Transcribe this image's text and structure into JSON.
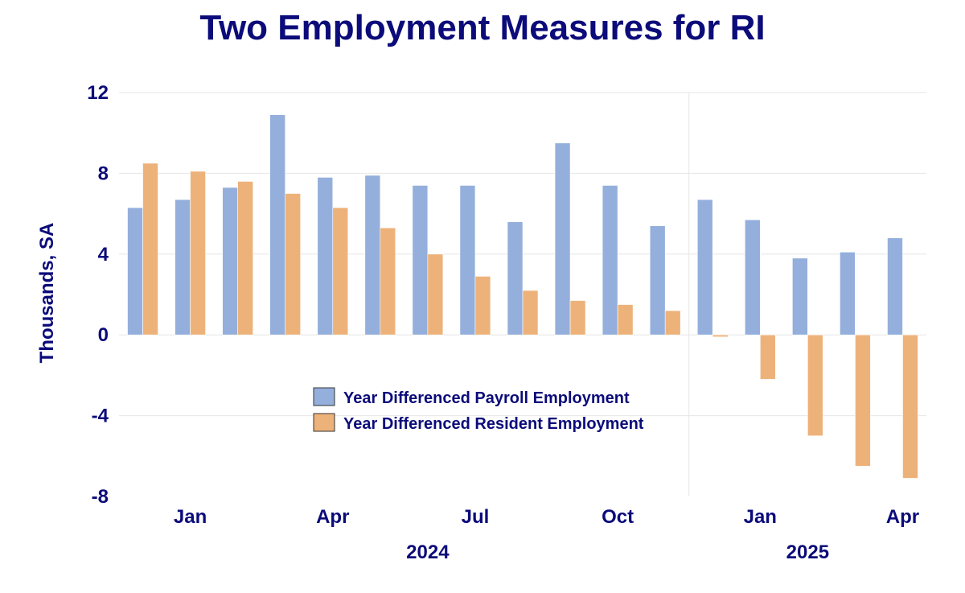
{
  "chart_data": {
    "type": "bar",
    "title": "Two Employment Measures for RI",
    "ylabel": "Thousands, SA",
    "ylim": [
      -8,
      12
    ],
    "yticks": [
      12,
      8,
      4,
      0,
      -4,
      -8
    ],
    "months": [
      "2023-12",
      "2024-01",
      "2024-02",
      "2024-03",
      "2024-04",
      "2024-05",
      "2024-06",
      "2024-07",
      "2024-08",
      "2024-09",
      "2024-10",
      "2024-11",
      "2024-12",
      "2025-01",
      "2025-02",
      "2025-03",
      "2025-04"
    ],
    "x_tick_labels": [
      {
        "month": "2024-01",
        "label": "Jan"
      },
      {
        "month": "2024-04",
        "label": "Apr"
      },
      {
        "month": "2024-07",
        "label": "Jul"
      },
      {
        "month": "2024-10",
        "label": "Oct"
      },
      {
        "month": "2025-01",
        "label": "Jan"
      },
      {
        "month": "2025-04",
        "label": "Apr"
      }
    ],
    "year_labels": [
      {
        "month": "2024-06",
        "label": "2024"
      },
      {
        "month": "2025-02",
        "label": "2025"
      }
    ],
    "year_divider_between": [
      "2024-11",
      "2024-12"
    ],
    "series": [
      {
        "name": "Year Differenced Payroll Employment",
        "color": "#94afdc",
        "values": [
          6.3,
          6.7,
          7.3,
          10.9,
          7.8,
          7.9,
          7.4,
          7.4,
          5.6,
          9.5,
          7.4,
          5.4,
          6.7,
          5.7,
          3.8,
          4.1,
          4.8
        ]
      },
      {
        "name": "Year Differenced Resident Employment",
        "color": "#edb27a",
        "values": [
          8.5,
          8.1,
          7.6,
          7.0,
          6.3,
          5.3,
          4.0,
          2.9,
          2.2,
          1.7,
          1.5,
          1.2,
          -0.1,
          -2.2,
          -5.0,
          -6.5,
          -7.1
        ]
      }
    ],
    "grid": true,
    "legend_position": "lower-center"
  }
}
